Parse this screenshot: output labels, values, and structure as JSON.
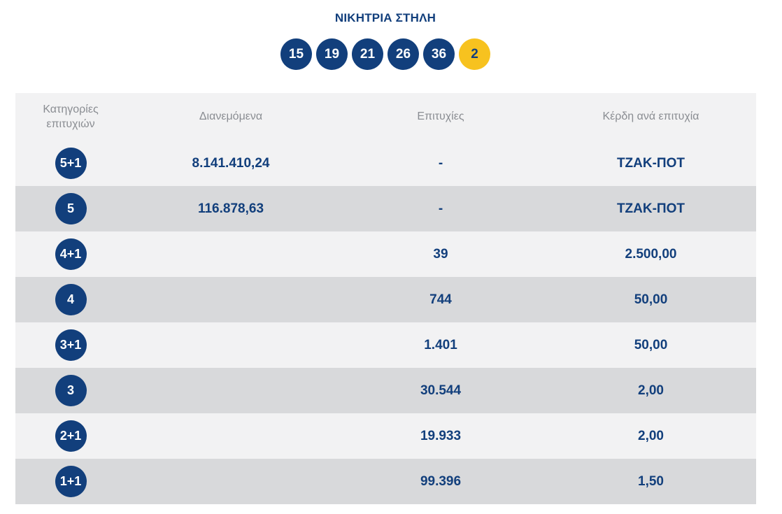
{
  "title": "ΝΙΚΗΤΡΙΑ ΣΤΗΛΗ",
  "winning_numbers": [
    "15",
    "19",
    "21",
    "26",
    "36"
  ],
  "joker_number": "2",
  "colors": {
    "primary": "#123f7c",
    "joker": "#f7c21f",
    "row_light": "#f2f2f3",
    "row_dark": "#d8d9db",
    "header_text": "#8a8d92"
  },
  "table": {
    "headers": {
      "category_line1": "Κατηγορίες",
      "category_line2": "επιτυχιών",
      "distributed": "Διανεμόμενα",
      "winners": "Επιτυχίες",
      "prize": "Κέρδη ανά επιτυχία"
    },
    "rows": [
      {
        "category": "5+1",
        "distributed": "8.141.410,24",
        "winners": "-",
        "prize": "ΤΖΑΚ-ΠΟΤ"
      },
      {
        "category": "5",
        "distributed": "116.878,63",
        "winners": "-",
        "prize": "ΤΖΑΚ-ΠΟΤ"
      },
      {
        "category": "4+1",
        "distributed": "",
        "winners": "39",
        "prize": "2.500,00"
      },
      {
        "category": "4",
        "distributed": "",
        "winners": "744",
        "prize": "50,00"
      },
      {
        "category": "3+1",
        "distributed": "",
        "winners": "1.401",
        "prize": "50,00"
      },
      {
        "category": "3",
        "distributed": "",
        "winners": "30.544",
        "prize": "2,00"
      },
      {
        "category": "2+1",
        "distributed": "",
        "winners": "19.933",
        "prize": "2,00"
      },
      {
        "category": "1+1",
        "distributed": "",
        "winners": "99.396",
        "prize": "1,50"
      }
    ]
  }
}
